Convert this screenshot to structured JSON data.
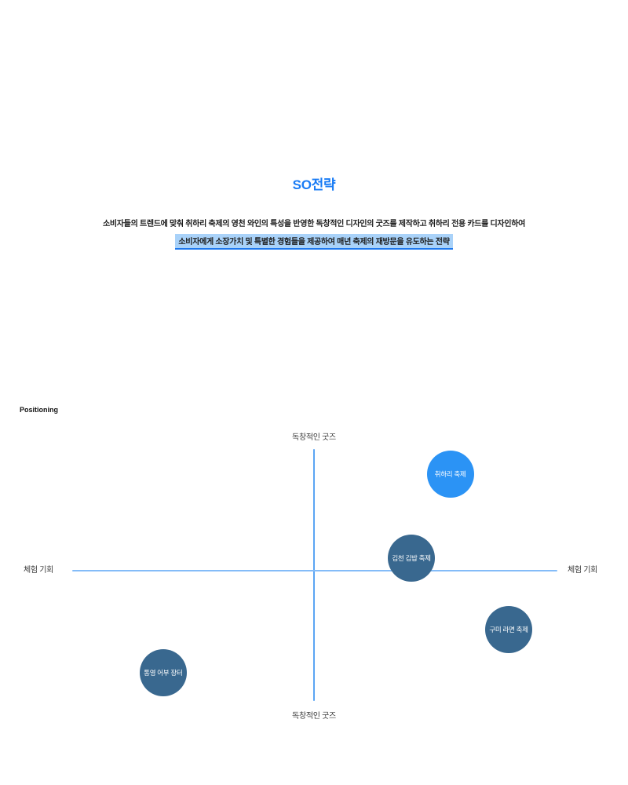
{
  "title": "SO전략",
  "title_color": "#1a7cf5",
  "body": {
    "line1": "소비자들의 트렌드에 맞춰 취하리 축제의 영천 와인의 특성을 반영한 독창적인 디자인의 굿즈를 제작하고 취하리 전용 카드를 디자인하여",
    "line2": "소비자에게 소장가치 및 특별한 경험들을 제공하여 매년 축제의 재방문을 유도하는 전략",
    "highlight_color": "#a9d2f9",
    "underline_color": "#1d78ee"
  },
  "chart_data": {
    "type": "scatter",
    "title": "Positioning",
    "axis_labels": {
      "top": "독창적인 굿즈",
      "bottom": "독창적인 굿즈",
      "left": "체험 기회",
      "right": "체험 기회"
    },
    "axis_color_vertical": "#5ba5f3",
    "axis_color_horizontal": "#84bcf8",
    "x_range": [
      -1,
      1
    ],
    "y_range": [
      -1,
      1
    ],
    "grid": false,
    "points": [
      {
        "label": "취하리 축제",
        "x": 0.56,
        "y": 0.77,
        "color": "#2b93f5"
      },
      {
        "label": "김천 김밥 축제",
        "x": 0.4,
        "y": 0.1,
        "color": "#39688f"
      },
      {
        "label": "구미 라면 축제",
        "x": 0.8,
        "y": -0.47,
        "color": "#39688f"
      },
      {
        "label": "통영 어부 장터",
        "x": -0.62,
        "y": -0.81,
        "color": "#39688f"
      }
    ]
  }
}
